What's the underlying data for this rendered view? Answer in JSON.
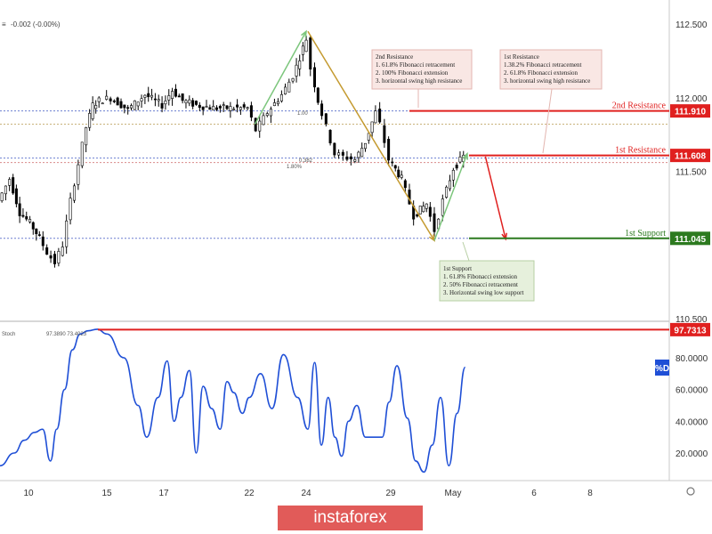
{
  "header": {
    "symbol_text": "≡",
    "change_text": "-0.002 (-0.00%)"
  },
  "levels": {
    "resistance2": {
      "label": "2nd Resistance",
      "value": "111.910",
      "num": 111.91,
      "color": "#e0201f"
    },
    "resistance1": {
      "label": "1st Resistance",
      "value": "111.608",
      "num": 111.608,
      "color": "#e0201f"
    },
    "support1": {
      "label": "1st Support",
      "value": "111.045",
      "num": 111.045,
      "color": "#2c7a1f"
    }
  },
  "annotations": {
    "res2_box": {
      "lines": [
        "2nd Resistance",
        "1. 61.8% Fibonacci retracement",
        "2. 100% Fibonacci extension",
        "3. horizontal swing high resistance"
      ]
    },
    "res1_box": {
      "lines": [
        "1st Resistance",
        "1.38.2% Fibonacci retracement",
        "2. 61.8% Fibonacci extension",
        "3. horizontal swing high resistance"
      ]
    },
    "sup1_box": {
      "lines": [
        "1st Support",
        "1. 61.8% Fibonacci extension",
        "2. 50% Fibonacci retracement",
        "3. Horizontal swing low support"
      ]
    },
    "fib_labels": [
      "0.382",
      "1.80%",
      "1.00"
    ]
  },
  "stoch": {
    "label": "Stoch",
    "values_text": "97.3890  73.4023",
    "level_value": "97.7313",
    "level_num": 97.7313,
    "badge": "%D",
    "line_color": "#1f4fd6"
  },
  "logo_text": "instaforex",
  "chart_data": [
    {
      "type": "candlestick",
      "title": "",
      "ylim": [
        110.4,
        112.62
      ],
      "ytick_labels": [
        "112.500",
        "112.000",
        "111.500",
        "110.500"
      ],
      "ytick_values": [
        112.5,
        112.0,
        111.5,
        110.5
      ],
      "xtick_labels": [
        "10",
        "15",
        "17",
        "22",
        "24",
        "29",
        "May",
        "6",
        "8"
      ],
      "xtick_values": [
        0,
        5,
        7,
        12,
        14,
        19,
        22,
        26,
        28
      ],
      "price_path": [
        [
          -2,
          111.3
        ],
        [
          -1.2,
          111.45
        ],
        [
          -0.5,
          111.22
        ],
        [
          0.2,
          111.15
        ],
        [
          0.8,
          111.05
        ],
        [
          1.3,
          110.95
        ],
        [
          1.8,
          110.88
        ],
        [
          2.3,
          111.0
        ],
        [
          2.8,
          111.3
        ],
        [
          3.3,
          111.55
        ],
        [
          3.8,
          111.8
        ],
        [
          4.2,
          111.95
        ],
        [
          4.6,
          111.98
        ],
        [
          5.2,
          112.0
        ],
        [
          5.8,
          111.92
        ],
        [
          6.4,
          112.02
        ],
        [
          7.0,
          111.95
        ],
        [
          7.6,
          112.05
        ],
        [
          8.2,
          111.98
        ],
        [
          9.0,
          111.95
        ],
        [
          10.0,
          111.93
        ],
        [
          11.0,
          111.93
        ],
        [
          12.0,
          111.93
        ],
        [
          12.3,
          111.78
        ],
        [
          12.7,
          111.9
        ],
        [
          13.2,
          112.02
        ],
        [
          13.6,
          112.15
        ],
        [
          14.1,
          112.4
        ],
        [
          14.4,
          112.2
        ],
        [
          14.8,
          111.98
        ],
        [
          15.3,
          111.8
        ],
        [
          15.8,
          111.62
        ],
        [
          16.3,
          111.6
        ],
        [
          17.0,
          111.58
        ],
        [
          17.6,
          111.7
        ],
        [
          18.2,
          111.9
        ],
        [
          18.5,
          111.82
        ],
        [
          19.0,
          111.58
        ],
        [
          19.6,
          111.45
        ],
        [
          20.2,
          111.2
        ],
        [
          20.8,
          111.28
        ],
        [
          21.2,
          111.1
        ],
        [
          21.6,
          111.3
        ],
        [
          22.1,
          111.52
        ],
        [
          22.6,
          111.6
        ]
      ],
      "levels": [
        {
          "name": "2nd Resistance",
          "value": 111.91
        },
        {
          "name": "1st Resistance",
          "value": 111.608
        },
        {
          "name": "1st Support",
          "value": 111.045
        }
      ]
    },
    {
      "type": "line",
      "title": "Stoch",
      "ylim": [
        0,
        103
      ],
      "ytick_labels": [
        "80.0000",
        "60.0000",
        "40.0000",
        "20.0000"
      ],
      "ytick_values": [
        80,
        60,
        40,
        20
      ],
      "series": [
        {
          "name": "%D",
          "points": [
            [
              -2,
              12
            ],
            [
              -1,
              20
            ],
            [
              -0.3,
              28
            ],
            [
              0.4,
              33
            ],
            [
              0.9,
              35
            ],
            [
              1.4,
              15
            ],
            [
              1.8,
              35
            ],
            [
              2.3,
              60
            ],
            [
              2.8,
              85
            ],
            [
              3.3,
              95
            ],
            [
              3.8,
              97
            ],
            [
              4.4,
              98
            ],
            [
              5.0,
              95
            ],
            [
              5.6,
              80
            ],
            [
              6.1,
              50
            ],
            [
              6.4,
              30
            ],
            [
              6.8,
              55
            ],
            [
              7.2,
              78
            ],
            [
              7.6,
              40
            ],
            [
              8.0,
              55
            ],
            [
              8.5,
              72
            ],
            [
              8.9,
              20
            ],
            [
              9.3,
              62
            ],
            [
              9.8,
              48
            ],
            [
              10.3,
              35
            ],
            [
              10.7,
              65
            ],
            [
              11.1,
              58
            ],
            [
              11.6,
              45
            ],
            [
              12.0,
              55
            ],
            [
              12.4,
              70
            ],
            [
              12.8,
              48
            ],
            [
              13.2,
              82
            ],
            [
              13.7,
              55
            ],
            [
              14.1,
              35
            ],
            [
              14.5,
              77
            ],
            [
              14.9,
              25
            ],
            [
              15.3,
              55
            ],
            [
              15.7,
              30
            ],
            [
              16.1,
              18
            ],
            [
              16.5,
              40
            ],
            [
              17.0,
              50
            ],
            [
              17.5,
              30
            ],
            [
              18.0,
              30
            ],
            [
              18.5,
              30
            ],
            [
              18.9,
              52
            ],
            [
              19.3,
              75
            ],
            [
              19.8,
              42
            ],
            [
              20.2,
              15
            ],
            [
              20.6,
              8
            ],
            [
              21.0,
              25
            ],
            [
              21.4,
              55
            ],
            [
              21.8,
              12
            ],
            [
              22.2,
              45
            ],
            [
              22.6,
              74
            ]
          ]
        }
      ],
      "levels": [
        {
          "name": "97.7313",
          "value": 97.7313
        }
      ]
    }
  ]
}
